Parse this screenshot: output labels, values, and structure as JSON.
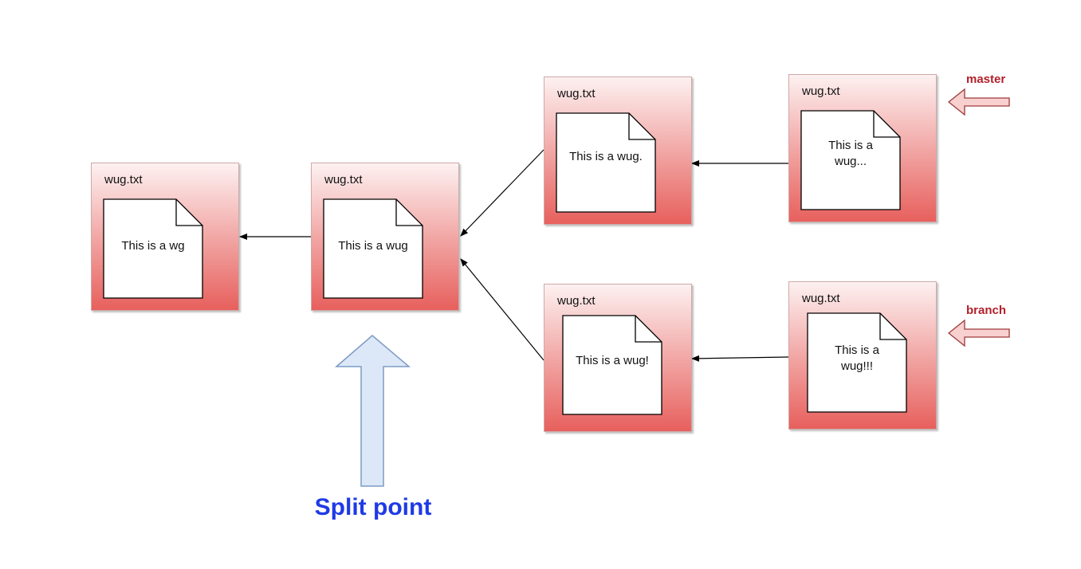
{
  "commits": [
    {
      "id": "c1",
      "title": "wug.txt",
      "lines": [
        "This is a wg"
      ]
    },
    {
      "id": "c2",
      "title": "wug.txt",
      "lines": [
        "This is a wug"
      ]
    },
    {
      "id": "c3",
      "title": "wug.txt",
      "lines": [
        "This is a wug."
      ]
    },
    {
      "id": "c4",
      "title": "wug.txt",
      "lines": [
        "This is a",
        "wug..."
      ]
    },
    {
      "id": "c5",
      "title": "wug.txt",
      "lines": [
        "This is a wug!"
      ]
    },
    {
      "id": "c6",
      "title": "wug.txt",
      "lines": [
        "This is a",
        "wug!!!"
      ]
    }
  ],
  "refs": {
    "master": "master",
    "branch": "branch"
  },
  "split_point_label": "Split point",
  "colors": {
    "ref_label": "#b3202b",
    "split_label": "#1f3ae6",
    "split_arrow_fill": "#dce8f8",
    "split_arrow_stroke": "#7d9cc4",
    "ref_arrow_fill": "#f8d0d0",
    "ref_arrow_stroke": "#9e3a3a"
  }
}
